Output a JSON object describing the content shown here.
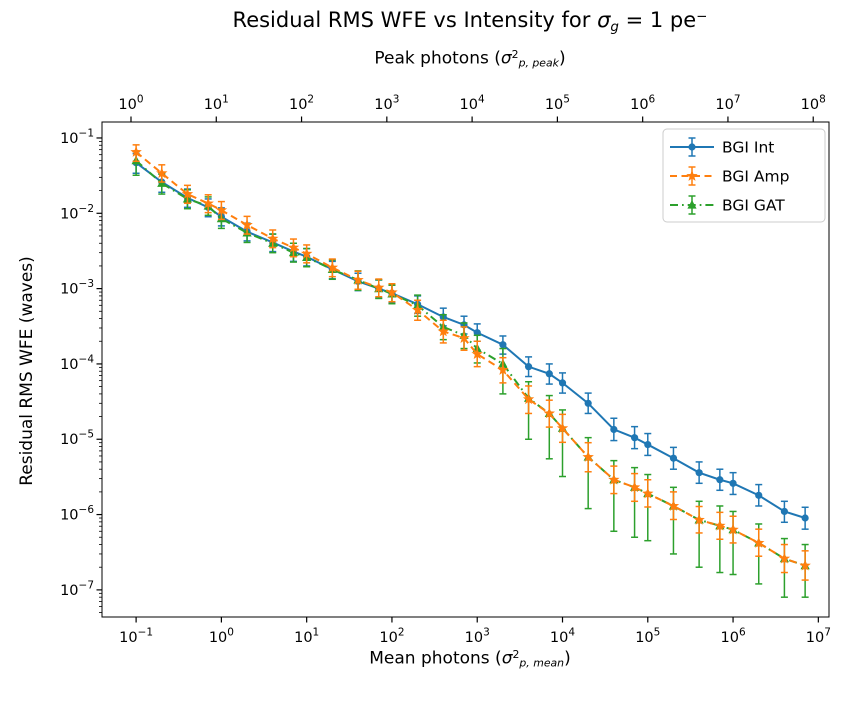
{
  "figure": {
    "title_segments": [
      {
        "t": "Residual RMS WFE vs Intensity for "
      },
      {
        "t": "σ",
        "italic": true
      },
      {
        "t": "g",
        "sub": true,
        "italic": true
      },
      {
        "t": " = 1 pe"
      },
      {
        "t": "−",
        "sup": true
      }
    ],
    "top_axis_label_segments": [
      {
        "t": "Peak photons ("
      },
      {
        "t": "σ",
        "italic": true
      },
      {
        "t": "2",
        "sup": true
      },
      {
        "t": "p, peak",
        "sub": true,
        "italic": true
      },
      {
        "t": ")"
      }
    ],
    "bottom_axis_label_segments": [
      {
        "t": "Mean photons ("
      },
      {
        "t": "σ",
        "italic": true
      },
      {
        "t": "2",
        "sup": true
      },
      {
        "t": "p, mean",
        "sub": true,
        "italic": true
      },
      {
        "t": ")"
      }
    ],
    "y_axis_label": "Residual RMS WFE (waves)"
  },
  "chart_data": {
    "type": "line",
    "title": "Residual RMS WFE vs Intensity for σ_g = 1 pe−",
    "xlabel_bottom": "Mean photons (σ²_p,mean)",
    "xlabel_top": "Peak photons (σ²_p,peak)",
    "ylabel": "Residual RMS WFE (waves)",
    "x_scale": "log",
    "y_scale": "log",
    "grid": false,
    "legend_position": "upper right",
    "x_log_range": [
      -1.4,
      7.125
    ],
    "y_log_range": [
      -7.36,
      -0.788
    ],
    "bottom_tick_exponents": [
      -1,
      0,
      1,
      2,
      3,
      4,
      5,
      6,
      7
    ],
    "top_tick_exponents": [
      0,
      1,
      2,
      3,
      4,
      5,
      6,
      7,
      8
    ],
    "top_axis_offset_decades": 1.06,
    "y_tick_exponents": [
      -1,
      -2,
      -3,
      -4,
      -5,
      -6,
      -7
    ],
    "y_minor_ticks": true,
    "tick_label_base": "10",
    "series": [
      {
        "name": "BGI Int",
        "color": "#1f77b4",
        "linestyle": "solid",
        "marker": "circle",
        "points": [
          [
            0.1,
            0.047,
            0.034,
            0.062
          ],
          [
            0.2,
            0.026,
            0.019,
            0.034
          ],
          [
            0.4,
            0.016,
            0.012,
            0.021
          ],
          [
            0.7,
            0.012,
            0.009,
            0.0155
          ],
          [
            1,
            0.009,
            0.0068,
            0.0118
          ],
          [
            2,
            0.0057,
            0.0043,
            0.0074
          ],
          [
            4,
            0.0041,
            0.0031,
            0.0053
          ],
          [
            7,
            0.0031,
            0.0023,
            0.004
          ],
          [
            10,
            0.00265,
            0.002,
            0.0034
          ],
          [
            20,
            0.0018,
            0.00135,
            0.0023
          ],
          [
            40,
            0.00125,
            0.00094,
            0.0016
          ],
          [
            70,
            0.001,
            0.00075,
            0.0013
          ],
          [
            100,
            0.00087,
            0.00065,
            0.00112
          ],
          [
            200,
            0.00062,
            0.00047,
            0.0008
          ],
          [
            400,
            0.00042,
            0.00032,
            0.00055
          ],
          [
            700,
            0.00033,
            0.00025,
            0.00043
          ],
          [
            1000,
            0.00026,
            0.0002,
            0.00034
          ],
          [
            2000,
            0.00018,
            0.000135,
            0.000235
          ],
          [
            4000,
            9.2e-05,
            6.8e-05,
            0.000124
          ],
          [
            7000,
            7.4e-05,
            5.4e-05,
            0.0001
          ],
          [
            10000.0,
            5.6e-05,
            4.1e-05,
            7.6e-05
          ],
          [
            20000.0,
            3e-05,
            2.2e-05,
            4.1e-05
          ],
          [
            40000.0,
            1.35e-05,
            9.6e-06,
            1.9e-05
          ],
          [
            70000.0,
            1.05e-05,
            7.5e-06,
            1.47e-05
          ],
          [
            100000.0,
            8.5e-06,
            6.1e-06,
            1.19e-05
          ],
          [
            200000.0,
            5.6e-06,
            4e-06,
            7.8e-06
          ],
          [
            400000.0,
            3.6e-06,
            2.6e-06,
            5e-06
          ],
          [
            700000.0,
            2.9e-06,
            2.1e-06,
            4e-06
          ],
          [
            1000000.0,
            2.6e-06,
            1.85e-06,
            3.6e-06
          ],
          [
            2000000.0,
            1.8e-06,
            1.3e-06,
            2.5e-06
          ],
          [
            4000000.0,
            1.1e-06,
            7.9e-07,
            1.5e-06
          ],
          [
            7000000.0,
            9e-07,
            6.4e-07,
            1.25e-06
          ]
        ]
      },
      {
        "name": "BGI Amp",
        "color": "#ff7f0e",
        "linestyle": "dashed",
        "marker": "star",
        "points": [
          [
            0.1,
            0.065,
            0.049,
            0.081
          ],
          [
            0.2,
            0.034,
            0.026,
            0.044
          ],
          [
            0.4,
            0.018,
            0.0136,
            0.0235
          ],
          [
            0.7,
            0.0135,
            0.0102,
            0.0176
          ],
          [
            1,
            0.011,
            0.0083,
            0.0143
          ],
          [
            2,
            0.007,
            0.0053,
            0.0091
          ],
          [
            4,
            0.0046,
            0.0035,
            0.006
          ],
          [
            7,
            0.0035,
            0.00265,
            0.00455
          ],
          [
            10,
            0.0029,
            0.0022,
            0.0038
          ],
          [
            20,
            0.0019,
            0.00144,
            0.00247
          ],
          [
            40,
            0.0013,
            0.00098,
            0.0017
          ],
          [
            70,
            0.00103,
            0.00078,
            0.00134
          ],
          [
            100,
            0.00089,
            0.00067,
            0.00116
          ],
          [
            200,
            0.00052,
            0.00038,
            0.0007
          ],
          [
            400,
            0.00027,
            0.00019,
            0.00038
          ],
          [
            700,
            0.00022,
            0.000152,
            0.00031
          ],
          [
            1000,
            0.000135,
            9.2e-05,
            0.0002
          ],
          [
            2000,
            8.3e-05,
            5.6e-05,
            0.000121
          ],
          [
            4000,
            3.4e-05,
            2.2e-05,
            5.1e-05
          ],
          [
            7000,
            2.2e-05,
            1.45e-05,
            3.3e-05
          ],
          [
            10000.0,
            1.4e-05,
            9.1e-06,
            2.14e-05
          ],
          [
            20000.0,
            5.8e-06,
            3.7e-06,
            9e-06
          ],
          [
            40000.0,
            2.9e-06,
            1.9e-06,
            4.4e-06
          ],
          [
            70000.0,
            2.3e-06,
            1.5e-06,
            3.5e-06
          ],
          [
            100000.0,
            1.9e-06,
            1.26e-06,
            2.9e-06
          ],
          [
            200000.0,
            1.3e-06,
            8.6e-07,
            2e-06
          ],
          [
            400000.0,
            8.5e-07,
            5.7e-07,
            1.28e-06
          ],
          [
            700000.0,
            7.1e-07,
            4.7e-07,
            1.07e-06
          ],
          [
            1000000.0,
            6.3e-07,
            4.2e-07,
            9.5e-07
          ],
          [
            2000000.0,
            4.2e-07,
            2.8e-07,
            6.4e-07
          ],
          [
            4000000.0,
            2.6e-07,
            1.7e-07,
            4e-07
          ],
          [
            7000000.0,
            2.1e-07,
            1.35e-07,
            3.3e-07
          ]
        ]
      },
      {
        "name": "BGI GAT",
        "color": "#2ca02c",
        "linestyle": "dashdot",
        "marker": "triangle",
        "points": [
          [
            0.1,
            0.05,
            0.032,
            0.066
          ],
          [
            0.2,
            0.025,
            0.018,
            0.033
          ],
          [
            0.4,
            0.0155,
            0.0115,
            0.0205
          ],
          [
            0.7,
            0.0125,
            0.0094,
            0.0165
          ],
          [
            1,
            0.0085,
            0.0063,
            0.0112
          ],
          [
            2,
            0.0055,
            0.0041,
            0.0073
          ],
          [
            4,
            0.004,
            0.003,
            0.0053
          ],
          [
            7,
            0.003,
            0.00225,
            0.004
          ],
          [
            10,
            0.0026,
            0.00195,
            0.0034
          ],
          [
            20,
            0.0018,
            0.00133,
            0.0024
          ],
          [
            40,
            0.0013,
            0.00095,
            0.00172
          ],
          [
            70,
            0.001,
            0.00074,
            0.00131
          ],
          [
            100,
            0.00085,
            0.00063,
            0.00111
          ],
          [
            200,
            0.0006,
            0.00043,
            0.00082
          ],
          [
            400,
            0.00031,
            0.00021,
            0.00045
          ],
          [
            700,
            0.00024,
            0.00016,
            0.00035
          ],
          [
            1000,
            0.00016,
            0.000103,
            0.00024
          ],
          [
            2000,
            0.0001,
            4e-05,
            0.00016
          ],
          [
            4000,
            3.5e-05,
            1e-05,
            5.8e-05
          ],
          [
            7000,
            2.2e-05,
            5.5e-06,
            3.8e-05
          ],
          [
            10000.0,
            1.4e-05,
            3.2e-06,
            2.45e-05
          ],
          [
            20000.0,
            5.8e-06,
            1.2e-06,
            1.05e-05
          ],
          [
            40000.0,
            2.9e-06,
            6e-07,
            5.2e-06
          ],
          [
            70000.0,
            2.3e-06,
            5e-07,
            4.2e-06
          ],
          [
            100000.0,
            1.9e-06,
            4.5e-07,
            3.4e-06
          ],
          [
            200000.0,
            1.3e-06,
            3e-07,
            2.3e-06
          ],
          [
            400000.0,
            8.5e-07,
            2e-07,
            1.5e-06
          ],
          [
            700000.0,
            7.1e-07,
            1.7e-07,
            1.3e-06
          ],
          [
            1000000.0,
            6.3e-07,
            1.6e-07,
            1.1e-06
          ],
          [
            2000000.0,
            4.2e-07,
            1.2e-07,
            7.5e-07
          ],
          [
            4000000.0,
            2.6e-07,
            8e-08,
            4.8e-07
          ],
          [
            7000000.0,
            2.1e-07,
            8e-08,
            4e-07
          ]
        ]
      }
    ],
    "colors": {
      "axis": "#000000",
      "background": "#ffffff",
      "legend_border": "#cccccc"
    }
  }
}
